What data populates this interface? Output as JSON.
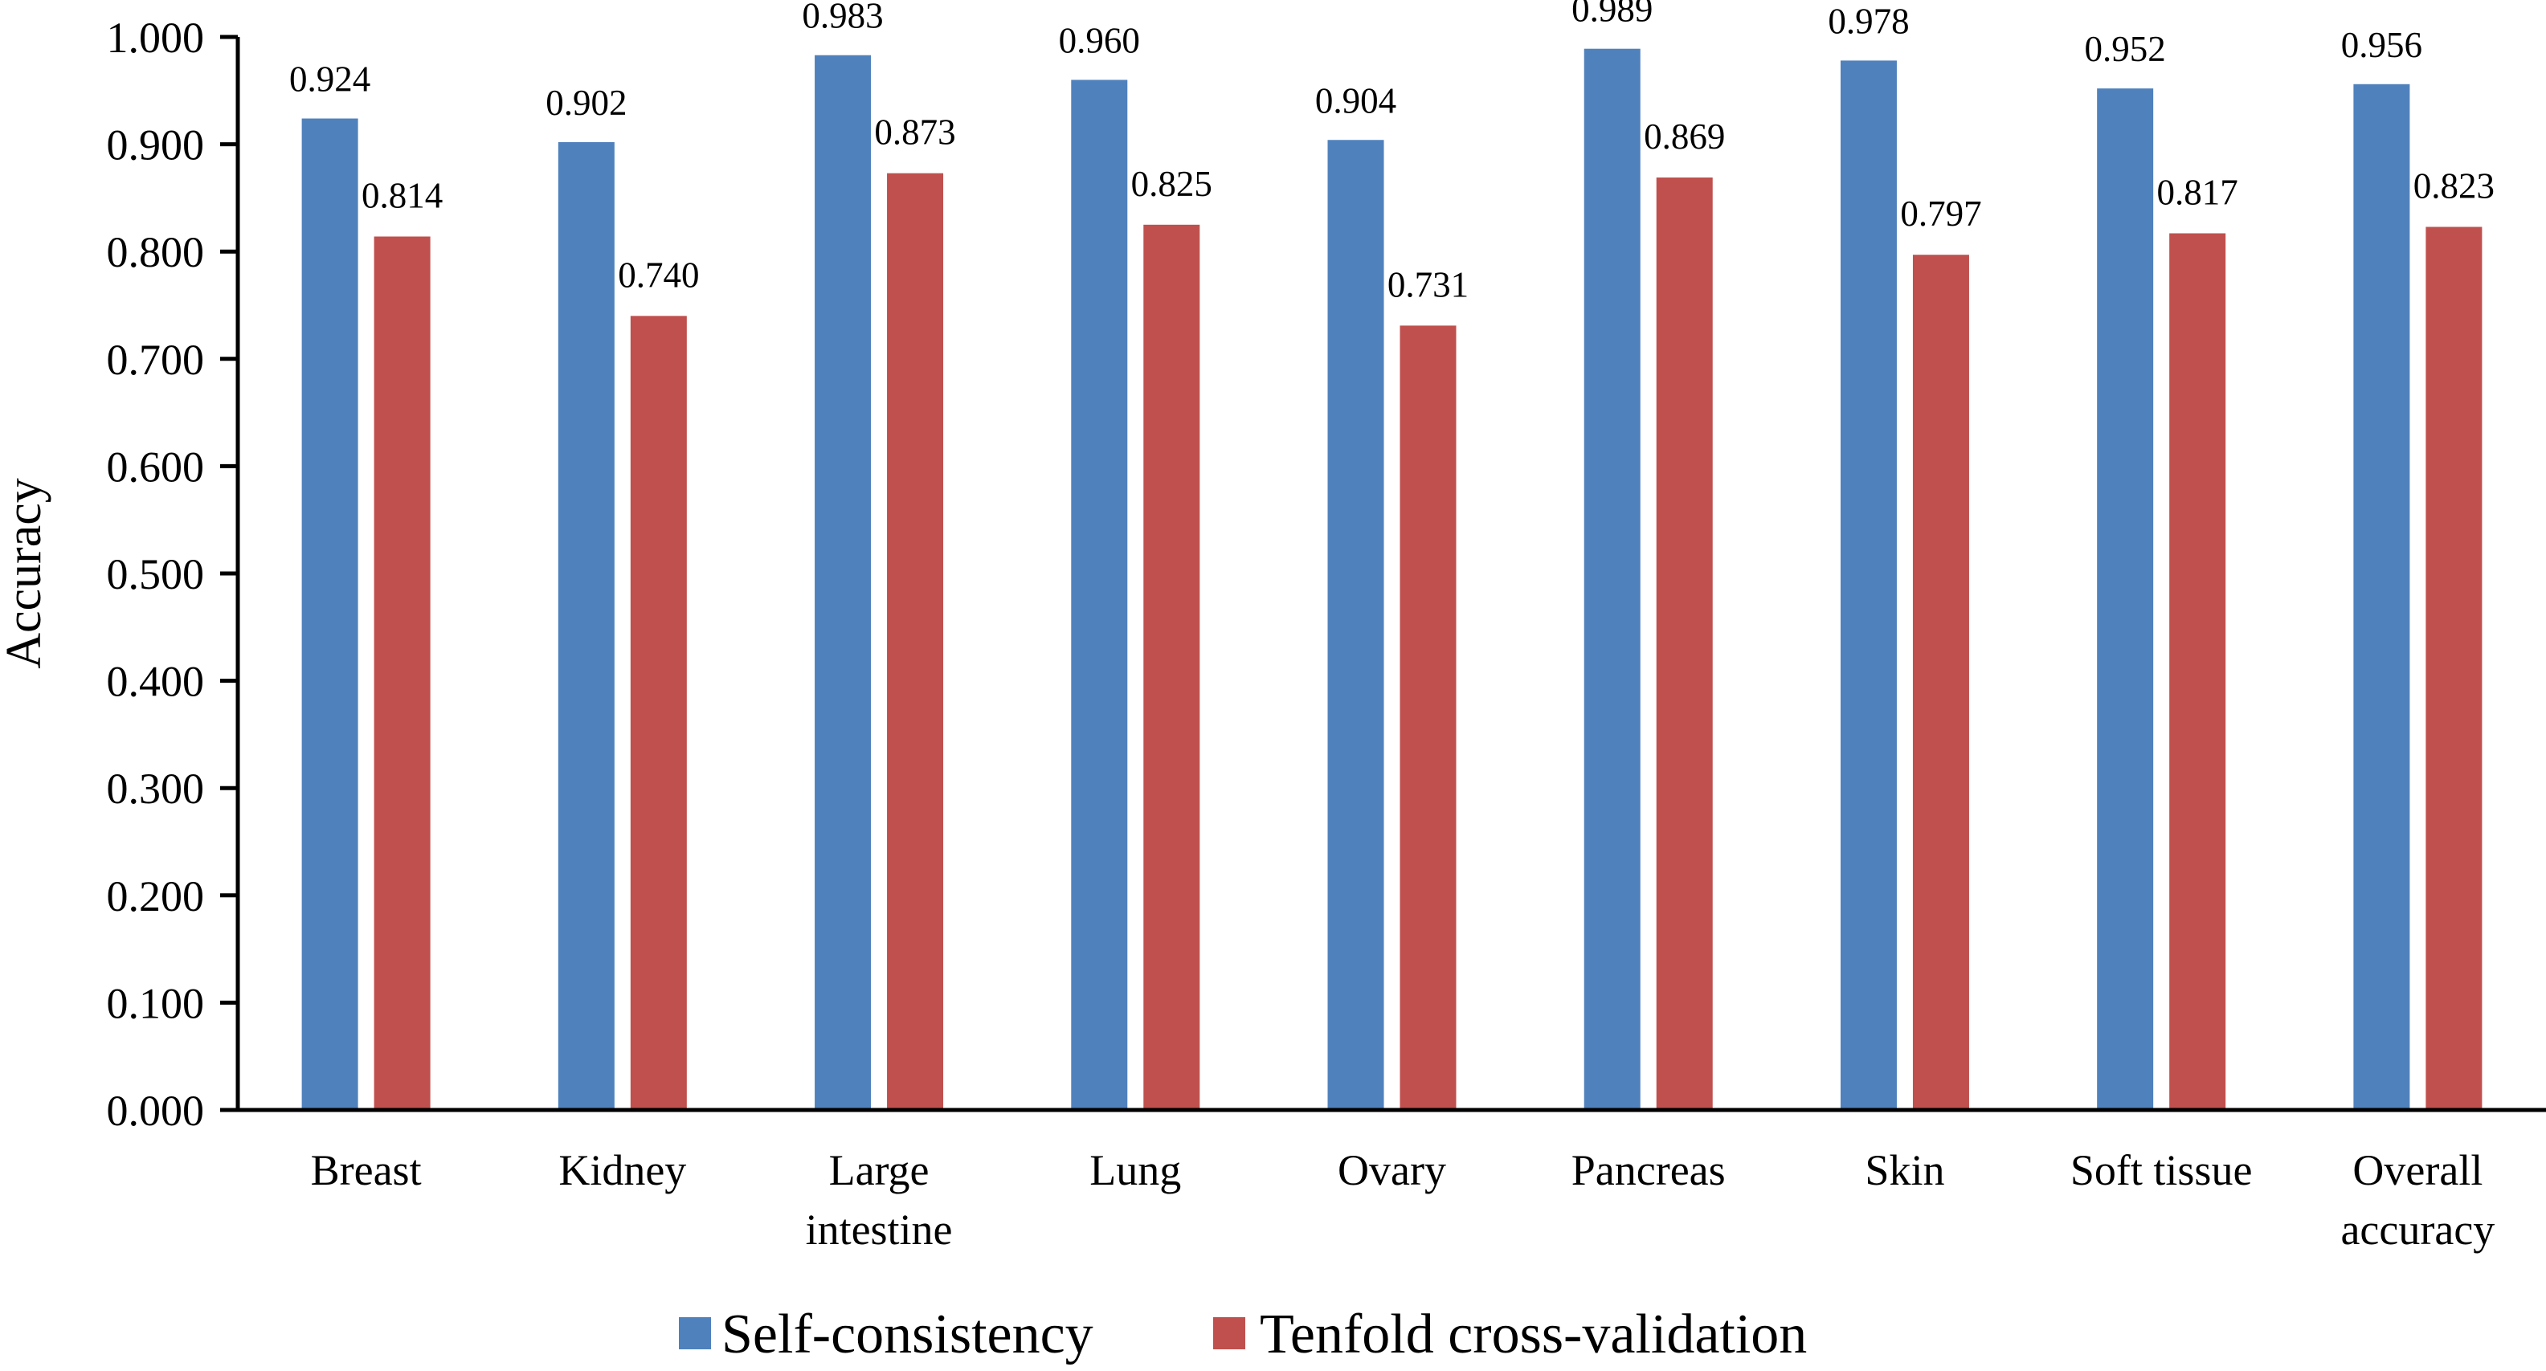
{
  "chart_data": {
    "type": "bar",
    "title": "",
    "xlabel": "",
    "ylabel": "Accuracy",
    "ylim": [
      0,
      1
    ],
    "yticks": [
      "0.000",
      "0.100",
      "0.200",
      "0.300",
      "0.400",
      "0.500",
      "0.600",
      "0.700",
      "0.800",
      "0.900",
      "1.000"
    ],
    "grid": false,
    "legend_position": "bottom",
    "categories": [
      [
        "Breast"
      ],
      [
        "Kidney"
      ],
      [
        "Large",
        "intestine"
      ],
      [
        "Lung"
      ],
      [
        "Ovary"
      ],
      [
        "Pancreas"
      ],
      [
        "Skin"
      ],
      [
        "Soft tissue"
      ],
      [
        "Overall",
        "accuracy"
      ]
    ],
    "series": [
      {
        "name": "Self-consistency",
        "color": "#4F81BD",
        "values": [
          0.924,
          0.902,
          0.983,
          0.96,
          0.904,
          0.989,
          0.978,
          0.952,
          0.956
        ],
        "labels": [
          "0.924",
          "0.902",
          "0.983",
          "0.960",
          "0.904",
          "0.989",
          "0.978",
          "0.952",
          "0.956"
        ]
      },
      {
        "name": "Tenfold cross-validation",
        "color": "#C0504D",
        "values": [
          0.814,
          0.74,
          0.873,
          0.825,
          0.731,
          0.869,
          0.797,
          0.817,
          0.823
        ],
        "labels": [
          "0.814",
          "0.740",
          "0.873",
          "0.825",
          "0.731",
          "0.869",
          "0.797",
          "0.817",
          "0.823"
        ]
      }
    ]
  }
}
